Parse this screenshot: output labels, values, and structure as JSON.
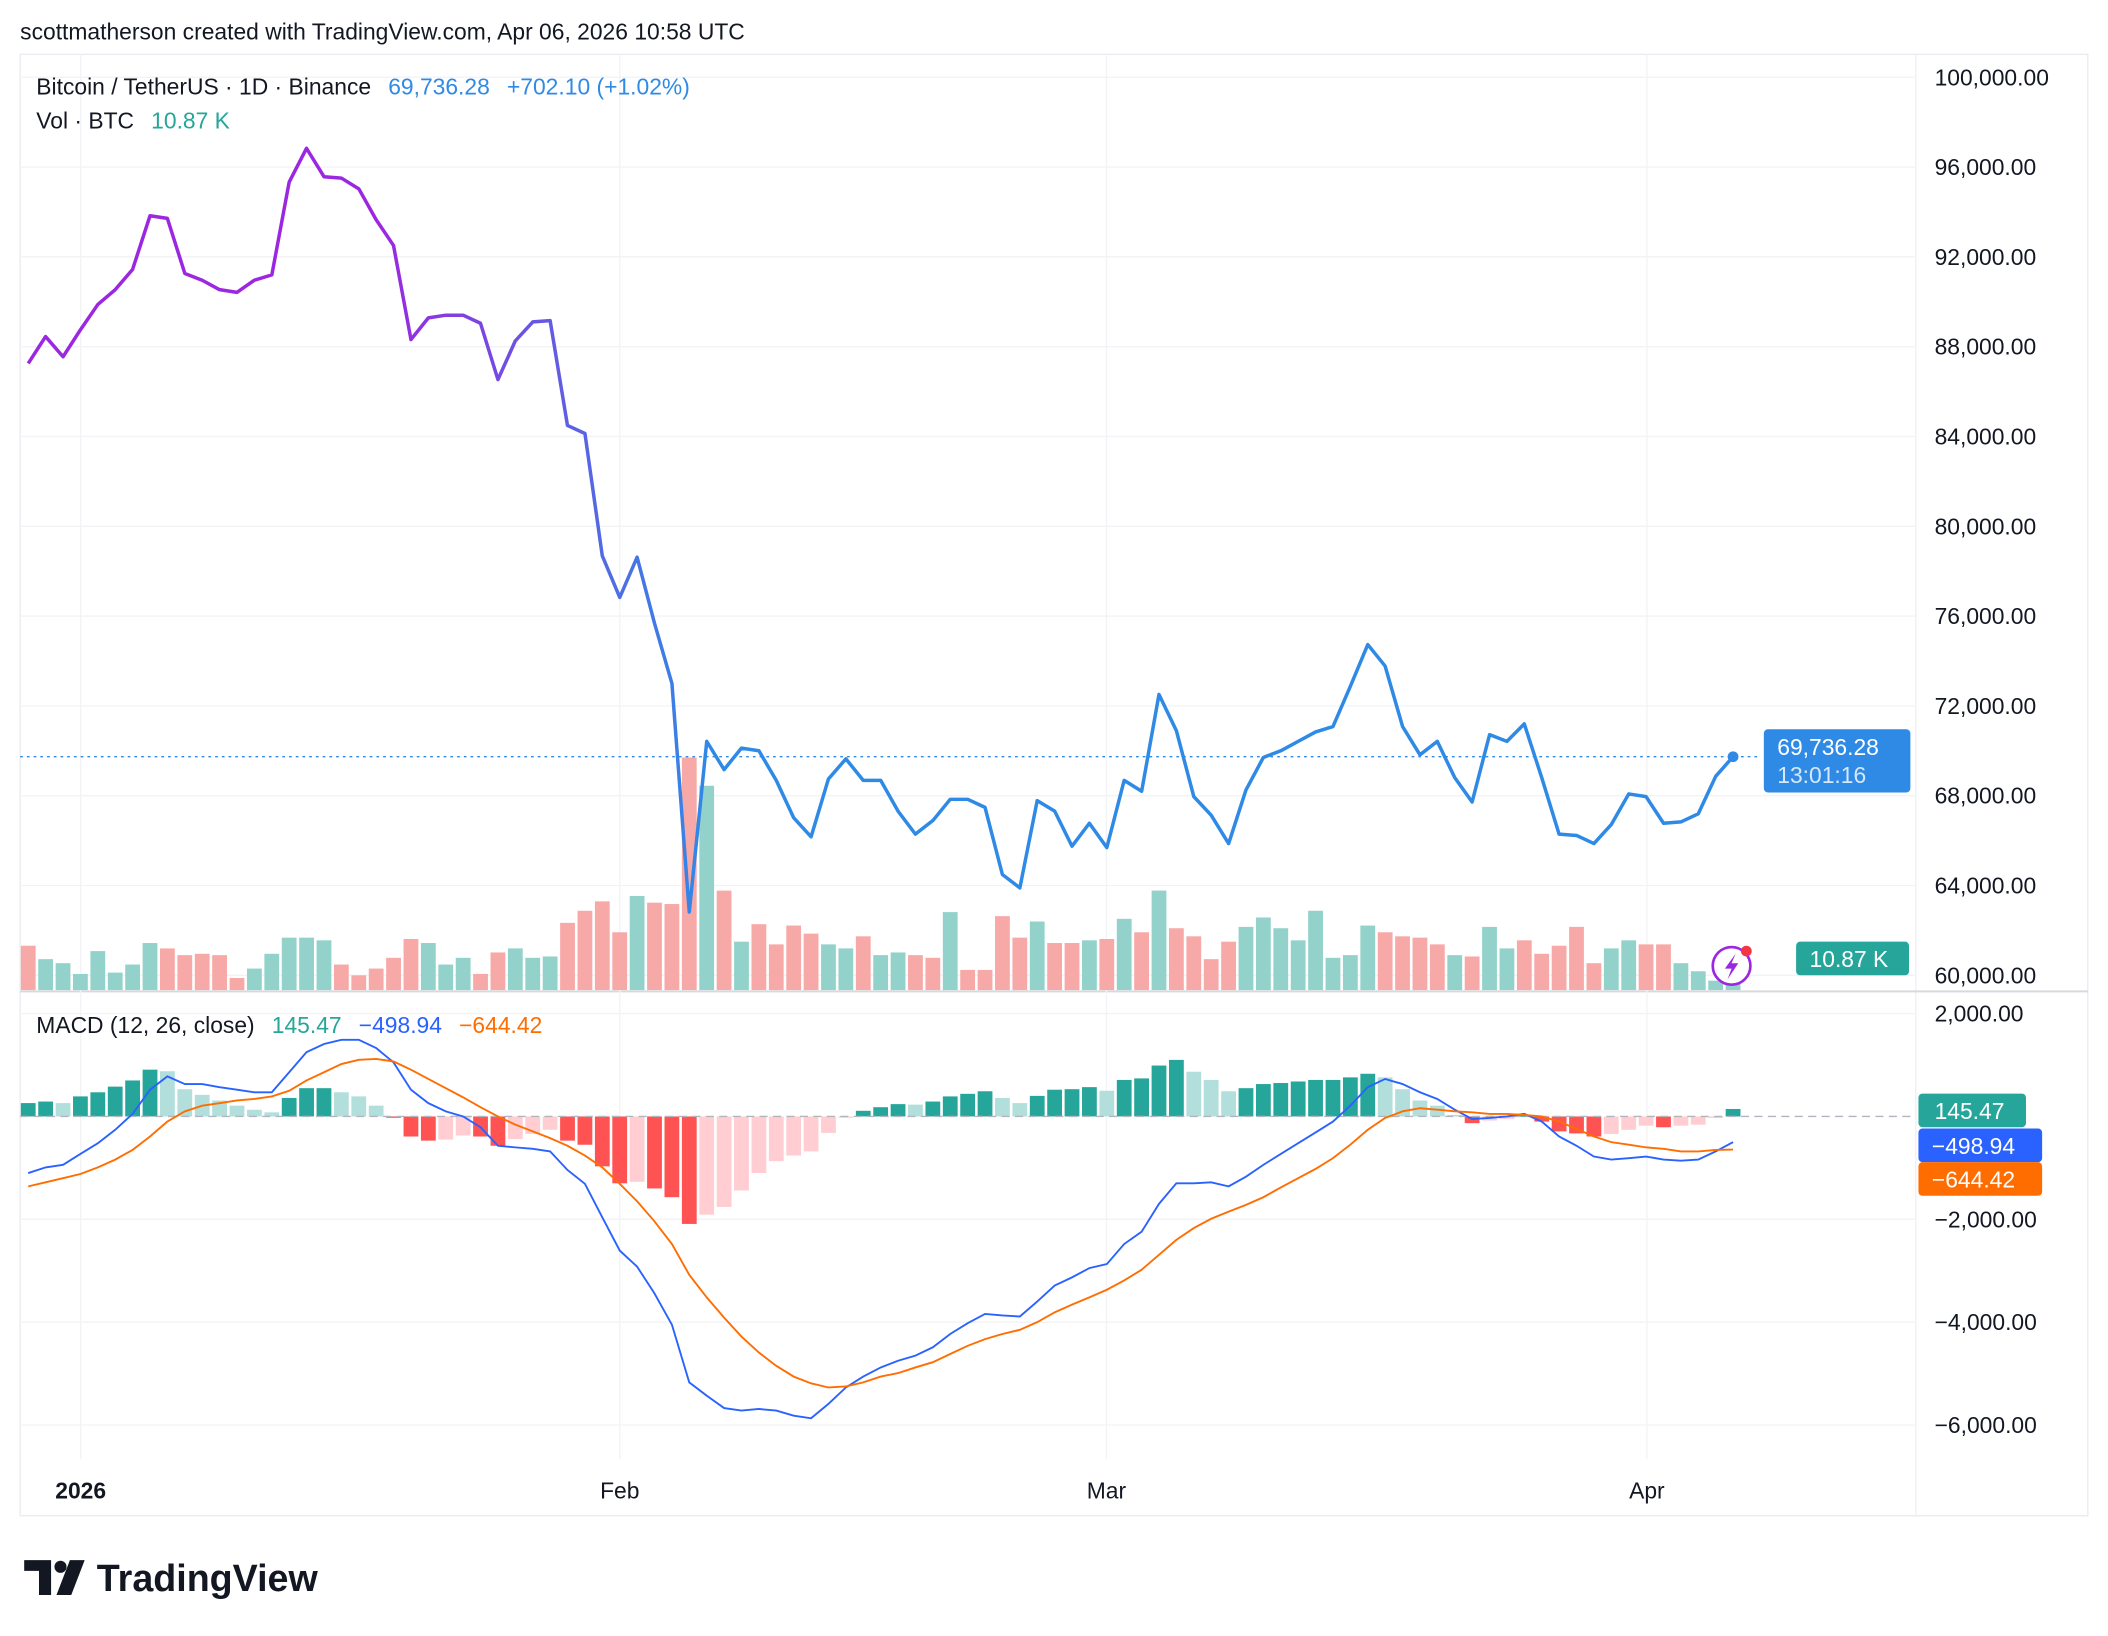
{
  "header": {
    "attribution": "scottmatherson created with TradingView.com, Apr 06, 2026 10:58 UTC"
  },
  "legend": {
    "symbol": "Bitcoin / TetherUS · 1D · Binance",
    "last_price": "69,736.28",
    "change": "+702.10 (+1.02%)",
    "volume_label": "Vol · BTC",
    "volume_value": "10.87 K",
    "macd_label": "MACD (12, 26, close)",
    "macd_hist": "145.47",
    "macd_line": "−498.94",
    "macd_signal": "−644.42"
  },
  "price_badge": {
    "price": "69,736.28",
    "countdown": "13:01:16"
  },
  "volume_badge": "10.87 K",
  "macd_badges": {
    "hist": "145.47",
    "macd": "−498.94",
    "signal": "−644.42"
  },
  "logo": {
    "text": "TradingView"
  },
  "colors": {
    "price_start": "#9c27e0",
    "price_end": "#2f8ae6",
    "up": "#26a69a",
    "up_light": "#b2dfdb",
    "down": "#ff5252",
    "down_light": "#ffcdd2",
    "vol_up": "#92d2ca",
    "vol_down": "#f7a9a7",
    "macd": "#2962ff",
    "signal": "#ff6d00"
  },
  "chart_data": [
    {
      "type": "line",
      "title": "Bitcoin / TetherUS · 1D · Binance",
      "x_ticks": [
        "2026",
        "Feb",
        "Mar",
        "Apr"
      ],
      "y_ticks": [
        "100,000.00",
        "96,000.00",
        "92,000.00",
        "88,000.00",
        "84,000.00",
        "80,000.00",
        "76,000.00",
        "72,000.00",
        "68,000.00",
        "64,000.00",
        "60,000.00"
      ],
      "ylim": [
        60000,
        100000
      ],
      "grid": true,
      "series": [
        {
          "name": "Bitcoin / TetherUS",
          "values": [
            87250,
            88450,
            87550,
            88750,
            89880,
            90540,
            91440,
            93830,
            93710,
            91260,
            90960,
            90540,
            90420,
            90960,
            91200,
            95330,
            96830,
            95570,
            95510,
            95030,
            93650,
            92510,
            88320,
            89280,
            89400,
            89400,
            89040,
            86530,
            88260,
            89100,
            89160,
            84490,
            84130,
            78680,
            76830,
            78620,
            75690,
            73000,
            62820,
            70420,
            69160,
            70120,
            70000,
            68680,
            67010,
            66170,
            68740,
            69640,
            68680,
            68680,
            67310,
            66290,
            66890,
            67840,
            67840,
            67480,
            64490,
            63890,
            67780,
            67310,
            65750,
            66770,
            65690,
            68680,
            68200,
            72510,
            70900,
            67960,
            67130,
            65870,
            68260,
            69700,
            70000,
            70420,
            70840,
            71080,
            72870,
            74730,
            73770,
            71080,
            69820,
            70420,
            68800,
            67720,
            70720,
            70420,
            71200,
            68800,
            66290,
            66230,
            65870,
            66710,
            68080,
            67960,
            66770,
            66830,
            67190,
            68860,
            69736.28
          ]
        }
      ]
    },
    {
      "type": "bar",
      "title": "Vol · BTC",
      "unit": "K",
      "values": [
        19.8,
        13.8,
        12,
        7.2,
        17.4,
        7.8,
        11.4,
        21,
        18.6,
        15.6,
        16.2,
        15.6,
        5.4,
        9.6,
        16.2,
        23.4,
        23.4,
        22.2,
        11.4,
        6.6,
        9.6,
        14.4,
        22.8,
        21,
        11.4,
        14.4,
        7.2,
        16.8,
        18.6,
        14.4,
        15,
        30,
        35.4,
        39.6,
        25.8,
        42,
        39,
        38.4,
        103.8,
        91.2,
        44.4,
        21.6,
        29.4,
        20.4,
        28.8,
        25.2,
        20.4,
        18.6,
        24,
        15.6,
        16.8,
        15.6,
        14.4,
        34.8,
        9,
        9,
        33,
        23.4,
        30.6,
        21,
        21,
        22.2,
        22.8,
        31.8,
        25.8,
        44.4,
        27.6,
        24,
        13.8,
        21.6,
        28.2,
        32.4,
        27.6,
        22.2,
        35.4,
        14.4,
        15.6,
        28.8,
        25.8,
        24,
        23.4,
        20.4,
        15.6,
        15,
        28.2,
        18.6,
        22.2,
        16.2,
        19.8,
        28.2,
        12,
        18.6,
        22.2,
        20.4,
        20.4,
        12,
        8.4,
        4.2,
        10.87
      ],
      "direction": [
        "down",
        "up",
        "up",
        "up",
        "up",
        "up",
        "up",
        "up",
        "down",
        "down",
        "down",
        "down",
        "down",
        "up",
        "up",
        "up",
        "up",
        "up",
        "down",
        "down",
        "down",
        "down",
        "down",
        "up",
        "up",
        "up",
        "down",
        "down",
        "up",
        "up",
        "up",
        "down",
        "down",
        "down",
        "down",
        "up",
        "down",
        "down",
        "down",
        "up",
        "down",
        "up",
        "down",
        "down",
        "down",
        "down",
        "up",
        "up",
        "down",
        "up",
        "up",
        "down",
        "down",
        "up",
        "down",
        "down",
        "down",
        "down",
        "up",
        "down",
        "down",
        "up",
        "down",
        "up",
        "down",
        "up",
        "down",
        "down",
        "down",
        "down",
        "up",
        "up",
        "up",
        "up",
        "up",
        "up",
        "up",
        "up",
        "down",
        "down",
        "down",
        "down",
        "up",
        "down",
        "up",
        "up",
        "down",
        "down",
        "down",
        "down",
        "down",
        "up",
        "up",
        "down",
        "down",
        "up",
        "up",
        "up",
        "up"
      ]
    },
    {
      "type": "line",
      "title": "MACD (12, 26, close)",
      "y_ticks": [
        "2,000.00",
        "−2,000.00",
        "−4,000.00",
        "−6,000.00"
      ],
      "ylim": [
        -6500,
        2500
      ],
      "series": [
        {
          "name": "MACD",
          "values": [
            -1100,
            -990,
            -940,
            -730,
            -520,
            -260,
            50,
            520,
            780,
            630,
            630,
            570,
            520,
            470,
            470,
            860,
            1250,
            1410,
            1490,
            1490,
            1330,
            1050,
            520,
            260,
            100,
            0,
            -210,
            -570,
            -600,
            -630,
            -680,
            -1040,
            -1310,
            -1960,
            -2610,
            -2920,
            -3440,
            -4050,
            -5170,
            -5430,
            -5670,
            -5720,
            -5690,
            -5720,
            -5820,
            -5870,
            -5590,
            -5270,
            -5060,
            -4880,
            -4750,
            -4650,
            -4490,
            -4230,
            -4020,
            -3840,
            -3870,
            -3890,
            -3600,
            -3290,
            -3130,
            -2950,
            -2870,
            -2480,
            -2240,
            -1700,
            -1300,
            -1300,
            -1280,
            -1360,
            -1170,
            -940,
            -730,
            -520,
            -310,
            -100,
            210,
            570,
            730,
            630,
            470,
            340,
            130,
            -50,
            -30,
            0,
            50,
            -100,
            -390,
            -570,
            -780,
            -840,
            -810,
            -780,
            -840,
            -860,
            -840,
            -680,
            -498.94
          ]
        },
        {
          "name": "Signal",
          "values": [
            -1360,
            -1280,
            -1200,
            -1120,
            -990,
            -840,
            -650,
            -390,
            -100,
            100,
            210,
            260,
            310,
            340,
            390,
            500,
            700,
            860,
            1020,
            1100,
            1120,
            1070,
            910,
            730,
            550,
            370,
            180,
            0,
            -160,
            -290,
            -420,
            -570,
            -760,
            -990,
            -1310,
            -1650,
            -2040,
            -2480,
            -3080,
            -3520,
            -3910,
            -4280,
            -4590,
            -4850,
            -5060,
            -5190,
            -5270,
            -5250,
            -5170,
            -5060,
            -4990,
            -4880,
            -4780,
            -4620,
            -4460,
            -4330,
            -4230,
            -4150,
            -4000,
            -3810,
            -3660,
            -3520,
            -3370,
            -3190,
            -2980,
            -2690,
            -2400,
            -2170,
            -1990,
            -1850,
            -1720,
            -1570,
            -1380,
            -1200,
            -1020,
            -810,
            -550,
            -260,
            -30,
            100,
            160,
            130,
            100,
            80,
            50,
            50,
            30,
            0,
            -100,
            -240,
            -390,
            -500,
            -550,
            -600,
            -630,
            -680,
            -680,
            -650,
            -644.42
          ]
        }
      ]
    }
  ]
}
